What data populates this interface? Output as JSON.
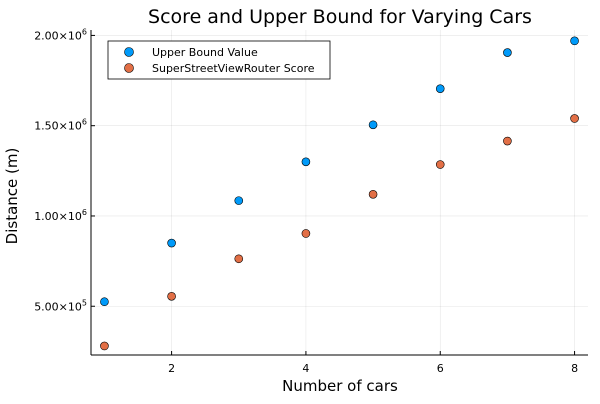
{
  "chart_data": {
    "type": "scatter",
    "title": "Score and Upper Bound for Varying Cars",
    "xlabel": "Number of cars",
    "ylabel": "Distance (m)",
    "xlim": [
      0.8,
      8.2
    ],
    "ylim": [
      230000,
      2030000
    ],
    "grid": true,
    "legend_position": "top-left",
    "x_ticks": [
      {
        "value": 2,
        "label": "2"
      },
      {
        "value": 4,
        "label": "4"
      },
      {
        "value": 6,
        "label": "6"
      },
      {
        "value": 8,
        "label": "8"
      }
    ],
    "y_ticks": [
      {
        "value": 500000,
        "mantissa": "5.00×10",
        "exponent": "5"
      },
      {
        "value": 1000000,
        "mantissa": "1.00×10",
        "exponent": "6"
      },
      {
        "value": 1500000,
        "mantissa": "1.50×10",
        "exponent": "6"
      },
      {
        "value": 2000000,
        "mantissa": "2.00×10",
        "exponent": "6"
      }
    ],
    "x": [
      1,
      2,
      3,
      4,
      5,
      6,
      7,
      8
    ],
    "series": [
      {
        "name": "Upper Bound Value",
        "color": "#009af9",
        "values": [
          525000,
          850000,
          1085000,
          1300000,
          1505000,
          1705000,
          1905000,
          1970000
        ]
      },
      {
        "name": "SuperStreetViewRouter Score",
        "color": "#e26f46",
        "values": [
          280000,
          555000,
          763000,
          903000,
          1120000,
          1285000,
          1415000,
          1540000
        ]
      }
    ]
  }
}
